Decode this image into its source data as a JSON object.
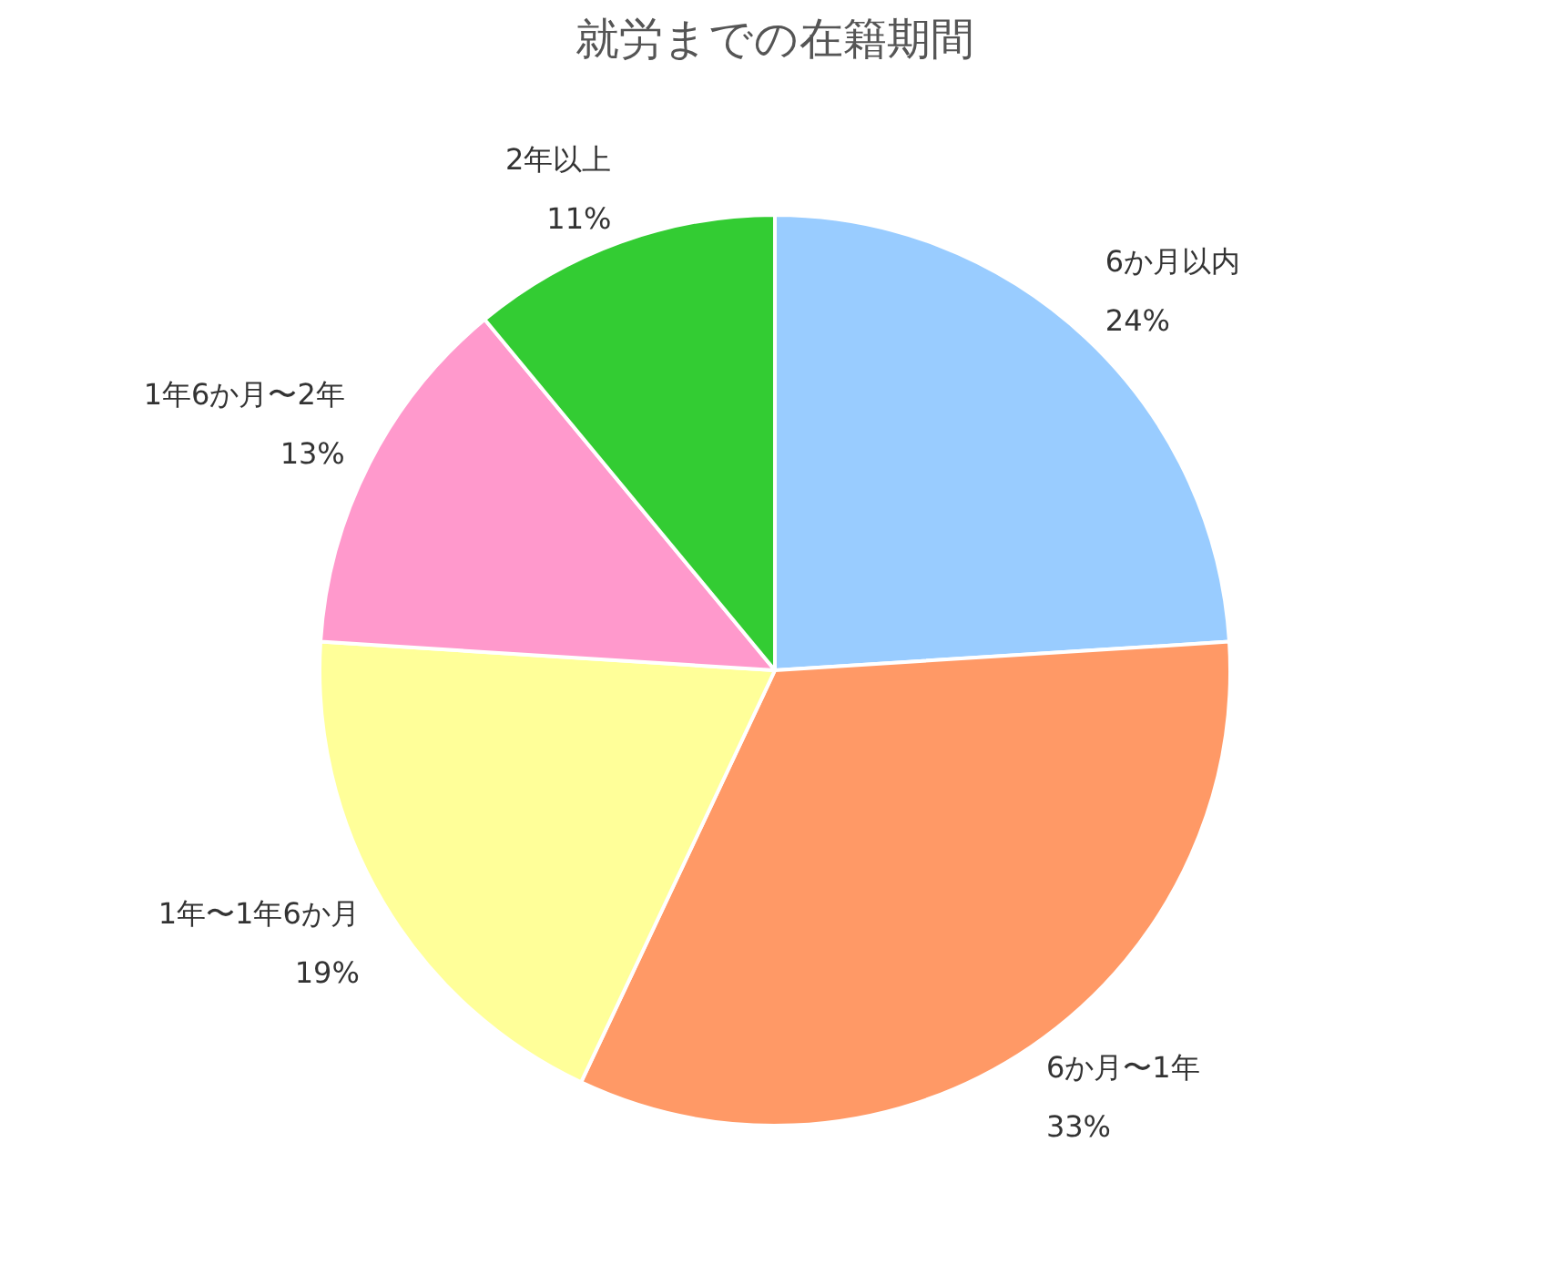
{
  "chart_data": {
    "type": "pie",
    "title": "就労までの在籍期間",
    "categories": [
      "6か月以内",
      "6か月〜1年",
      "1年〜1年6か月",
      "1年6か月〜2年",
      "2年以上"
    ],
    "values": [
      24,
      33,
      19,
      13,
      11
    ],
    "value_labels": [
      "24%",
      "33%",
      "19%",
      "13%",
      "11%"
    ],
    "colors": [
      "#99ccff",
      "#ff9966",
      "#ffff99",
      "#ff99cc",
      "#33cc33"
    ]
  }
}
